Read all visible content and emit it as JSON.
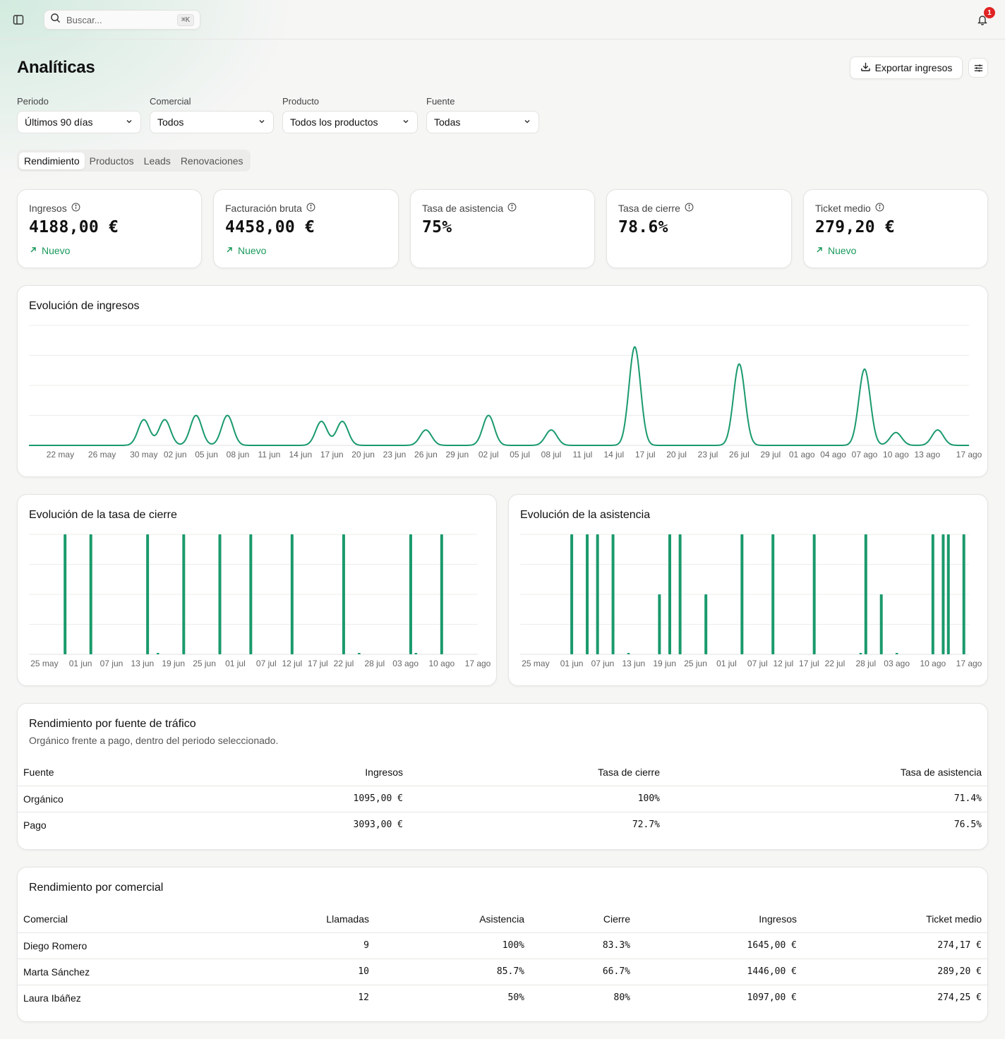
{
  "topbar": {
    "search_placeholder": "Buscar...",
    "search_shortcut": "⌘K",
    "notification_count": "1"
  },
  "page": {
    "title": "Analíticas",
    "export_label": "Exportar ingresos"
  },
  "filters": [
    {
      "label": "Periodo",
      "value": "Últimos 90 días"
    },
    {
      "label": "Comercial",
      "value": "Todos"
    },
    {
      "label": "Producto",
      "value": "Todos los productos"
    },
    {
      "label": "Fuente",
      "value": "Todas"
    }
  ],
  "tabs": [
    "Rendimiento",
    "Productos",
    "Leads",
    "Renovaciones"
  ],
  "active_tab": "Rendimiento",
  "kpis": [
    {
      "title": "Ingresos",
      "value": "4188,00 €",
      "note": "Nuevo"
    },
    {
      "title": "Facturación bruta",
      "value": "4458,00 €",
      "note": "Nuevo"
    },
    {
      "title": "Tasa de asistencia",
      "value": "75%",
      "note": ""
    },
    {
      "title": "Tasa de cierre",
      "value": "78.6%",
      "note": ""
    },
    {
      "title": "Ticket medio",
      "value": "279,20 €",
      "note": "Nuevo"
    }
  ],
  "accent_color": "#1a9a6c",
  "chart_data": [
    {
      "type": "line",
      "title": "Evolución de ingresos",
      "x_ticks": [
        "22 may",
        "26 may",
        "30 may",
        "02 jun",
        "05 jun",
        "08 jun",
        "11 jun",
        "14 jun",
        "17 jun",
        "20 jun",
        "23 jun",
        "26 jun",
        "29 jun",
        "02 jul",
        "05 jul",
        "08 jul",
        "11 jul",
        "14 jul",
        "17 jul",
        "20 jul",
        "23 jul",
        "26 jul",
        "29 jul",
        "01 ago",
        "04 ago",
        "07 ago",
        "10 ago",
        "13 ago",
        "17 ago"
      ],
      "x_range": [
        "19 may",
        "17 ago"
      ],
      "peaks": [
        {
          "x": "30 may",
          "y": 300
        },
        {
          "x": "01 jun",
          "y": 300
        },
        {
          "x": "04 jun",
          "y": 350
        },
        {
          "x": "07 jun",
          "y": 350
        },
        {
          "x": "16 jun",
          "y": 280
        },
        {
          "x": "18 jun",
          "y": 280
        },
        {
          "x": "26 jun",
          "y": 180
        },
        {
          "x": "02 jul",
          "y": 350
        },
        {
          "x": "08 jul",
          "y": 180
        },
        {
          "x": "16 jul",
          "y": 1150
        },
        {
          "x": "26 jul",
          "y": 950
        },
        {
          "x": "07 ago",
          "y": 890
        },
        {
          "x": "10 ago",
          "y": 150
        },
        {
          "x": "14 ago",
          "y": 180
        }
      ],
      "ylim": [
        0,
        1400
      ],
      "grid": true
    },
    {
      "type": "bar",
      "title": "Evolución de la tasa de cierre",
      "x_ticks": [
        "25 may",
        "01 jun",
        "07 jun",
        "13 jun",
        "19 jun",
        "25 jun",
        "01 jul",
        "07 jul",
        "12 jul",
        "17 jul",
        "22 jul",
        "28 jul",
        "03 ago",
        "10 ago",
        "17 ago"
      ],
      "x_range": [
        "22 may",
        "17 ago"
      ],
      "bars": [
        {
          "x": "29 may",
          "y": 100
        },
        {
          "x": "03 jun",
          "y": 100
        },
        {
          "x": "14 jun",
          "y": 100
        },
        {
          "x": "16 jun",
          "y": 1
        },
        {
          "x": "21 jun",
          "y": 100
        },
        {
          "x": "28 jun",
          "y": 100
        },
        {
          "x": "04 jul",
          "y": 100
        },
        {
          "x": "12 jul",
          "y": 100
        },
        {
          "x": "22 jul",
          "y": 100
        },
        {
          "x": "25 jul",
          "y": 1
        },
        {
          "x": "04 ago",
          "y": 100
        },
        {
          "x": "05 ago",
          "y": 1
        },
        {
          "x": "10 ago",
          "y": 100
        }
      ],
      "ylim": [
        0,
        100
      ],
      "grid": true
    },
    {
      "type": "bar",
      "title": "Evolución de la asistencia",
      "x_ticks": [
        "25 may",
        "01 jun",
        "07 jun",
        "13 jun",
        "19 jun",
        "25 jun",
        "01 jul",
        "07 jul",
        "12 jul",
        "17 jul",
        "22 jul",
        "28 jul",
        "03 ago",
        "10 ago",
        "17 ago"
      ],
      "x_range": [
        "22 may",
        "17 ago"
      ],
      "bars": [
        {
          "x": "01 jun",
          "y": 100
        },
        {
          "x": "04 jun",
          "y": 100
        },
        {
          "x": "06 jun",
          "y": 100
        },
        {
          "x": "09 jun",
          "y": 100
        },
        {
          "x": "12 jun",
          "y": 1
        },
        {
          "x": "18 jun",
          "y": 50
        },
        {
          "x": "20 jun",
          "y": 100
        },
        {
          "x": "22 jun",
          "y": 100
        },
        {
          "x": "27 jun",
          "y": 50
        },
        {
          "x": "04 jul",
          "y": 100
        },
        {
          "x": "10 jul",
          "y": 100
        },
        {
          "x": "18 jul",
          "y": 100
        },
        {
          "x": "27 jul",
          "y": 1
        },
        {
          "x": "28 jul",
          "y": 100
        },
        {
          "x": "31 jul",
          "y": 50
        },
        {
          "x": "03 ago",
          "y": 1
        },
        {
          "x": "10 ago",
          "y": 100
        },
        {
          "x": "12 ago",
          "y": 100
        },
        {
          "x": "13 ago",
          "y": 100
        },
        {
          "x": "16 ago",
          "y": 100
        }
      ],
      "ylim": [
        0,
        100
      ],
      "grid": true
    }
  ],
  "traffic": {
    "title": "Rendimiento por fuente de tráfico",
    "subtitle": "Orgánico frente a pago, dentro del periodo seleccionado.",
    "headers": [
      "Fuente",
      "Ingresos",
      "Tasa de cierre",
      "Tasa de asistencia"
    ],
    "rows": [
      [
        "Orgánico",
        "1095,00 €",
        "100%",
        "71.4%"
      ],
      [
        "Pago",
        "3093,00 €",
        "72.7%",
        "76.5%"
      ]
    ]
  },
  "sales": {
    "title": "Rendimiento por comercial",
    "headers": [
      "Comercial",
      "Llamadas",
      "Asistencia",
      "Cierre",
      "Ingresos",
      "Ticket medio"
    ],
    "rows": [
      [
        "Diego Romero",
        "9",
        "100%",
        "83.3%",
        "1645,00 €",
        "274,17 €"
      ],
      [
        "Marta Sánchez",
        "10",
        "85.7%",
        "66.7%",
        "1446,00 €",
        "289,20 €"
      ],
      [
        "Laura Ibáñez",
        "12",
        "50%",
        "80%",
        "1097,00 €",
        "274,25 €"
      ]
    ]
  }
}
